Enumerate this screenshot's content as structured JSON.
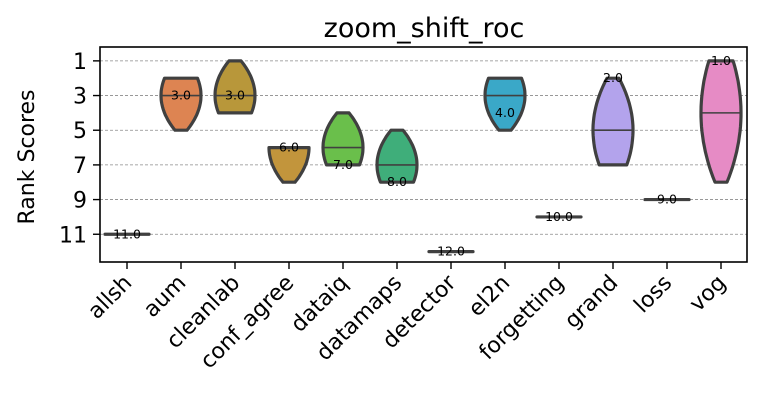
{
  "chart_data": {
    "type": "violin",
    "title": "zoom_shift_roc",
    "xlabel": "",
    "ylabel": "Rank Scores",
    "ylim": [
      12.6,
      0.2
    ],
    "y_inverted": true,
    "yticks": [
      "1",
      "3",
      "5",
      "7",
      "9",
      "11"
    ],
    "grid": "horizontal dashed",
    "categories": [
      "allsh",
      "aum",
      "cleanlab",
      "conf_agree",
      "dataiq",
      "datamaps",
      "detector",
      "el2n",
      "forgetting",
      "grand",
      "loss",
      "vog"
    ],
    "series": [
      {
        "name": "allsh",
        "min": 11,
        "max": 11,
        "median": 11,
        "label": "11.0",
        "color": "#4c72b0"
      },
      {
        "name": "aum",
        "min": 2,
        "max": 5,
        "median": 3,
        "label": "3.0",
        "color": "#dd8452"
      },
      {
        "name": "cleanlab",
        "min": 1,
        "max": 4,
        "median": 3,
        "label": "3.0",
        "color": "#b8973a"
      },
      {
        "name": "conf_agree",
        "min": 6,
        "max": 8,
        "median": 6,
        "label": "6.0",
        "color": "#c2953c"
      },
      {
        "name": "dataiq",
        "min": 4,
        "max": 7,
        "median": 6,
        "label": "7.0",
        "color": "#6abf4b"
      },
      {
        "name": "datamaps",
        "min": 5,
        "max": 8,
        "median": 7,
        "label": "8.0",
        "color": "#3fae7a"
      },
      {
        "name": "detector",
        "min": 12,
        "max": 12,
        "median": 12,
        "label": "12.0",
        "color": "#3ab5a0"
      },
      {
        "name": "el2n",
        "min": 2,
        "max": 5,
        "median": 3,
        "label": "4.0",
        "color": "#3aa8c8"
      },
      {
        "name": "forgetting",
        "min": 10,
        "max": 10,
        "median": 10,
        "label": "10.0",
        "color": "#4aa0c8"
      },
      {
        "name": "grand",
        "min": 2,
        "max": 7,
        "median": 5,
        "label": "2.0",
        "color": "#b3a3ec"
      },
      {
        "name": "loss",
        "min": 9,
        "max": 9,
        "median": 9,
        "label": "9.0",
        "color": "#c89ae0"
      },
      {
        "name": "vog",
        "min": 1,
        "max": 8,
        "median": 4,
        "label": "1.0",
        "color": "#e68bc5"
      }
    ]
  }
}
